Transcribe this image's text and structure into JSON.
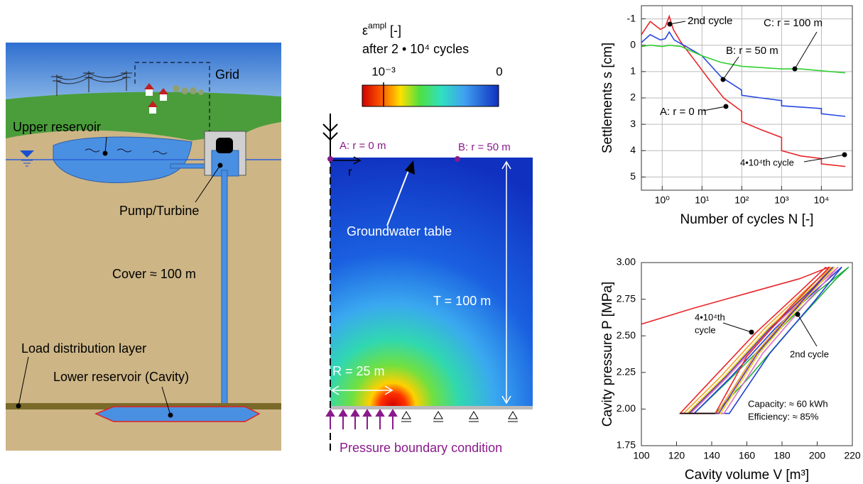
{
  "diagram_left": {
    "labels": {
      "grid": "Grid",
      "upper_reservoir": "Upper reservoir",
      "pump_turbine": "Pump/Turbine",
      "cover": "Cover ≈ 100 m",
      "load_layer": "Load distribution layer",
      "lower_reservoir": "Lower reservoir (Cavity)"
    }
  },
  "contour": {
    "colorbar": {
      "symbol": "ε",
      "superscript": "ampl",
      "unit": "[-]",
      "subtitle": "after 2 • 10⁴ cycles",
      "tick_left": "10⁻³",
      "tick_right": "0"
    },
    "labels": {
      "point_a": "A: r = 0 m",
      "point_b": "B: r = 50 m",
      "r_axis": "r",
      "groundwater": "Groundwater table",
      "depth": "T = 100 m",
      "radius": "R = 25 m",
      "boundary": "Pressure boundary condition"
    }
  },
  "chart_data": [
    {
      "type": "line",
      "xscale": "log",
      "y_inverted": true,
      "grid": true,
      "xlabel": "Number of cycles N [-]",
      "ylabel": "Settlements s [cm]",
      "xlim": [
        0.3,
        60000
      ],
      "ylim": [
        -1.5,
        5.5
      ],
      "xticks": [
        {
          "value": 1,
          "label": "10⁰"
        },
        {
          "value": 10,
          "label": "10¹"
        },
        {
          "value": 100,
          "label": "10²"
        },
        {
          "value": 1000,
          "label": "10³"
        },
        {
          "value": 10000,
          "label": "10⁴"
        }
      ],
      "yticks": [
        -1,
        0,
        1,
        2,
        3,
        4,
        5
      ],
      "series": [
        {
          "color": "#e8262a",
          "x": [
            0.3,
            0.5,
            0.9,
            1.2,
            1.5,
            1.9,
            3,
            6,
            15,
            35,
            99,
            100,
            300,
            999,
            1000,
            3000,
            9999,
            10000,
            40000
          ],
          "values": [
            -0.4,
            -0.9,
            -0.6,
            -0.7,
            -1.1,
            -0.6,
            -0.1,
            0.5,
            1.3,
            2.0,
            2.5,
            2.9,
            3.2,
            3.5,
            4.0,
            4.2,
            4.3,
            4.5,
            4.6
          ]
        },
        {
          "color": "#2848e0",
          "x": [
            0.3,
            0.5,
            0.9,
            1.2,
            1.5,
            2,
            4,
            10,
            30,
            99,
            100,
            300,
            999,
            1000,
            9999,
            10000,
            40000
          ],
          "values": [
            -0.1,
            -0.4,
            -0.2,
            -0.25,
            -0.5,
            -0.2,
            0.05,
            0.4,
            1.2,
            1.7,
            1.9,
            2.0,
            2.1,
            2.3,
            2.4,
            2.6,
            2.7
          ]
        },
        {
          "color": "#30d030",
          "x": [
            0.3,
            0.5,
            1,
            1.5,
            3,
            10,
            30,
            100,
            1000,
            3000,
            40000
          ],
          "values": [
            0.05,
            0.0,
            0.05,
            0.0,
            0.05,
            0.4,
            0.65,
            0.8,
            0.9,
            0.9,
            1.05
          ]
        }
      ],
      "annotations": [
        "2nd cycle",
        "C: r = 100 m",
        "B: r = 50 m",
        "A: r = 0 m",
        "4•10⁴th cycle"
      ]
    },
    {
      "type": "line",
      "grid": false,
      "xlabel": "Cavity volume V [m³]",
      "ylabel": "Cavity pressure P [MPa]",
      "xlim": [
        100,
        220
      ],
      "ylim": [
        1.75,
        3.0
      ],
      "xticks": [
        100,
        120,
        140,
        160,
        180,
        200,
        220
      ],
      "yticks": [
        1.75,
        {
          "value": 2,
          "label": "2.00"
        },
        2.25,
        {
          "value": 2.5,
          "label": "2.50"
        },
        2.75,
        {
          "value": 3,
          "label": "3.00"
        }
      ],
      "series": [
        {
          "color": "#20b040",
          "x": [
            130,
            150,
            175,
            200,
            218,
            210,
            185,
            160,
            142,
            130
          ],
          "values": [
            1.97,
            2.2,
            2.5,
            2.8,
            2.97,
            2.88,
            2.55,
            2.2,
            1.97,
            1.97
          ]
        },
        {
          "color": "#2040d0",
          "x": [
            130,
            151,
            176,
            201,
            214,
            198,
            173,
            150,
            130
          ],
          "values": [
            1.97,
            2.22,
            2.55,
            2.83,
            2.97,
            2.73,
            2.38,
            1.97,
            1.97
          ]
        },
        {
          "color": "#e070c0",
          "x": [
            128,
            149,
            174,
            199,
            212,
            194,
            169,
            147,
            128
          ],
          "values": [
            1.97,
            2.22,
            2.55,
            2.83,
            2.97,
            2.73,
            2.38,
            1.97,
            1.97
          ]
        },
        {
          "color": "#e8d020",
          "x": [
            126,
            147,
            172,
            197,
            210,
            192,
            167,
            145,
            126
          ],
          "values": [
            1.97,
            2.22,
            2.55,
            2.83,
            2.97,
            2.73,
            2.38,
            1.97,
            1.97
          ]
        },
        {
          "color": "#f0a030",
          "x": [
            124,
            145,
            170,
            195,
            208,
            190,
            165,
            143,
            124
          ],
          "values": [
            1.97,
            2.22,
            2.55,
            2.83,
            2.97,
            2.73,
            2.38,
            1.97,
            1.97
          ]
        },
        {
          "color": "#6030a0",
          "x": [
            127,
            148,
            173,
            198,
            209,
            191,
            166,
            144,
            127
          ],
          "values": [
            1.97,
            2.22,
            2.55,
            2.83,
            2.97,
            2.73,
            2.38,
            1.97,
            1.97
          ]
        },
        {
          "color": "#e8262a",
          "x": [
            100,
            130,
            160,
            190,
            207,
            185,
            160,
            142,
            122,
            140,
            165,
            190,
            205
          ],
          "values": [
            2.58,
            2.69,
            2.79,
            2.89,
            2.97,
            2.7,
            2.36,
            1.97,
            1.97,
            2.2,
            2.52,
            2.8,
            2.97
          ]
        },
        {
          "color": "#000000",
          "x": [
            122,
            142
          ],
          "values": [
            1.97,
            1.97
          ]
        }
      ],
      "annotations": [
        "4•10⁴th",
        "cycle",
        "2nd cycle",
        "Capacity: ≈ 60 kWh",
        "Efficiency: ≈ 85%"
      ]
    }
  ]
}
